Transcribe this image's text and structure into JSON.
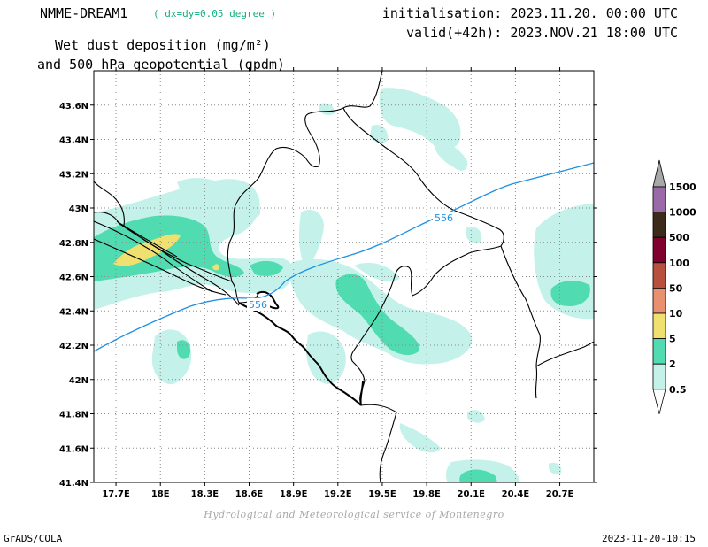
{
  "header": {
    "model": "NMME-DREAM1",
    "resolution": "( dx=dy=0.05 degree )",
    "product_line1": "Wet dust deposition (mg/m²)",
    "product_line2": "and 500 hPa geopotential (gpdm)",
    "initialisation": "initialisation: 2023.11.20. 00:00 UTC",
    "valid": "valid(+42h): 2023.NOV.21 18:00 UTC"
  },
  "axes": {
    "lat_labels": [
      "43.6N",
      "43.4N",
      "43.2N",
      "43N",
      "42.8N",
      "42.6N",
      "42.4N",
      "42.2N",
      "42N",
      "41.8N",
      "41.6N",
      "41.4N"
    ],
    "lat_values": [
      43.6,
      43.4,
      43.2,
      43.0,
      42.8,
      42.6,
      42.4,
      42.2,
      42.0,
      41.8,
      41.6,
      41.4
    ],
    "lon_labels": [
      "17.7E",
      "18E",
      "18.3E",
      "18.6E",
      "18.9E",
      "19.2E",
      "19.5E",
      "19.8E",
      "20.1E",
      "20.4E",
      "20.7E"
    ],
    "lon_values": [
      17.7,
      18.0,
      18.3,
      18.6,
      18.9,
      19.2,
      19.5,
      19.8,
      20.1,
      20.4,
      20.7
    ],
    "lat_range": [
      41.4,
      43.8
    ],
    "lon_range": [
      17.55,
      20.93
    ],
    "grid": true
  },
  "contour": {
    "label": "556",
    "color": "#1e90e0"
  },
  "legend": {
    "levels": [
      "1500",
      "1000",
      "500",
      "100",
      "50",
      "10",
      "5",
      "2",
      "0.5"
    ],
    "colors": [
      "#9a6aa8",
      "#3c2a1a",
      "#80002e",
      "#b85040",
      "#e89070",
      "#f0e070",
      "#50dcb0",
      "#c4f2ea"
    ]
  },
  "footer": {
    "credit": "Hydrological and Meteorological service of Montenegro",
    "software": "GrADS/COLA",
    "timestamp": "2023-11-20-10:15"
  }
}
